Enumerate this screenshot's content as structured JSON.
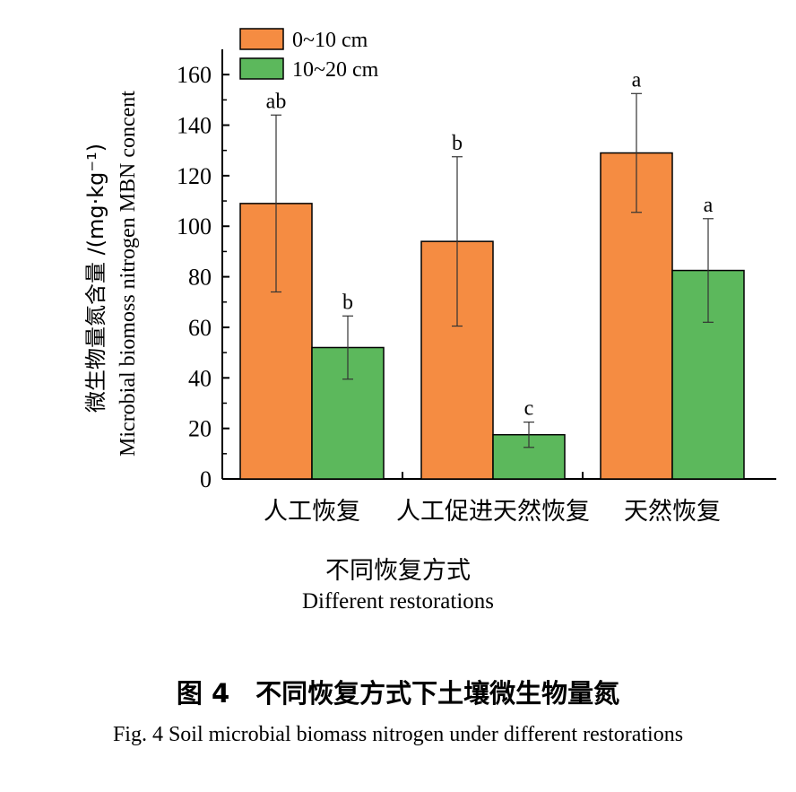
{
  "chart_data": {
    "type": "bar",
    "categories": [
      "人工恢复",
      "人工促进天然恢复",
      "天然恢复"
    ],
    "series": [
      {
        "name": "0~10 cm",
        "color": "#f58c42",
        "values": [
          109,
          94,
          129
        ],
        "errors": [
          35,
          33.5,
          23.5
        ],
        "letters": [
          "ab",
          "b",
          "a"
        ]
      },
      {
        "name": "10~20 cm",
        "color": "#5cb85c",
        "values": [
          52,
          17.5,
          82.5
        ],
        "errors": [
          12.5,
          5,
          20.5
        ],
        "letters": [
          "b",
          "c",
          "a"
        ]
      }
    ],
    "ylim": [
      0,
      170
    ],
    "yticks": [
      "0",
      "20",
      "40",
      "60",
      "80",
      "100",
      "120",
      "140",
      "160"
    ],
    "ylabel_cn": "微生物量氮含量 /(mg·kg⁻¹)",
    "ylabel_en": "Microbial biomoss nitrogen MBN concent",
    "xlabel_cn": "不同恢复方式",
    "xlabel_en": "Different restorations",
    "legend_position": "top-left",
    "grid": false
  },
  "caption": {
    "cn": "图 4　不同恢复方式下土壤微生物量氮",
    "en": "Fig. 4 Soil microbial biomass nitrogen under different restorations"
  }
}
